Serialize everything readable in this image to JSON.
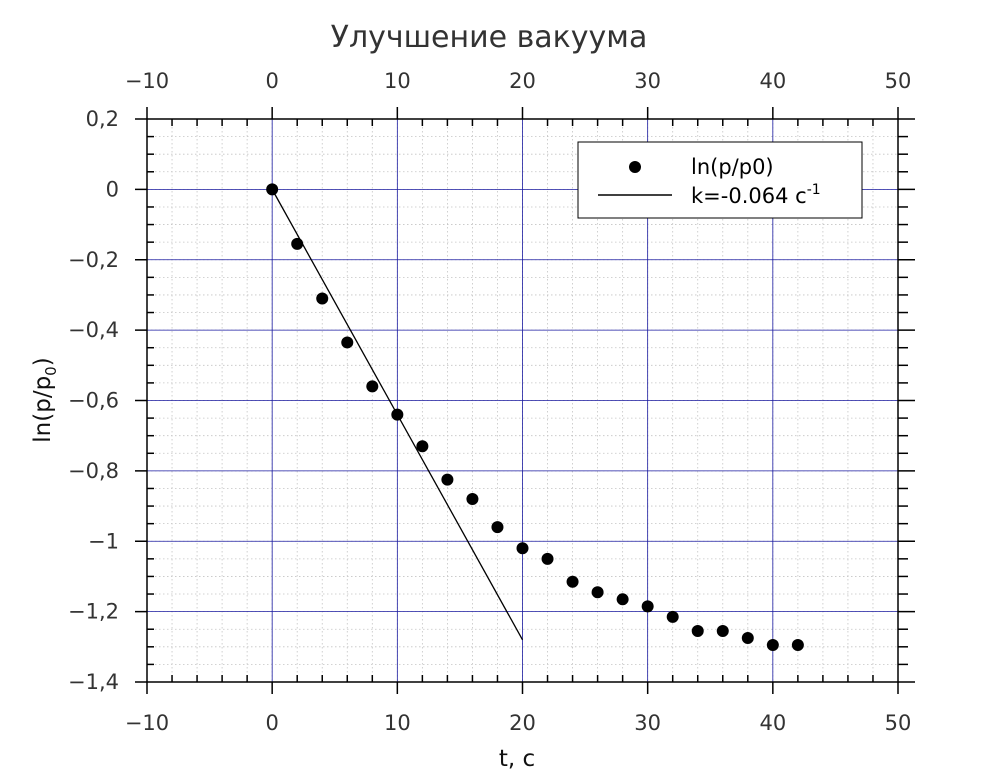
{
  "chart_data": {
    "type": "scatter",
    "title": "Улучшение вакуума",
    "xlabel": "t, с",
    "ylabel": "ln(p/p",
    "ylabel_sub": "0",
    "ylabel_close": ")",
    "xlim": [
      -10,
      50
    ],
    "ylim": [
      -1.4,
      0.2
    ],
    "xticks": [
      -10,
      0,
      10,
      20,
      30,
      40,
      50
    ],
    "xtick_labels": [
      "−10",
      "0",
      "10",
      "20",
      "30",
      "40",
      "50"
    ],
    "yticks": [
      0.2,
      0,
      -0.2,
      -0.4,
      -0.6,
      -0.8,
      -1,
      -1.2,
      -1.4
    ],
    "ytick_labels": [
      "0,2",
      "0",
      "−0,2",
      "−0,4",
      "−0,6",
      "−0,8",
      "−1",
      "−1,2",
      "−1,4"
    ],
    "grid": true,
    "legend_position": "top-right",
    "series": [
      {
        "name": "ln(p/p0)",
        "kind": "markers",
        "color": "#000000",
        "x": [
          0,
          2,
          4,
          6,
          8,
          10,
          12,
          14,
          16,
          18,
          20,
          22,
          24,
          26,
          28,
          30,
          32,
          34,
          36,
          38,
          40,
          42
        ],
        "y": [
          0,
          -0.155,
          -0.31,
          -0.435,
          -0.56,
          -0.64,
          -0.73,
          -0.825,
          -0.88,
          -0.96,
          -1.02,
          -1.05,
          -1.115,
          -1.145,
          -1.165,
          -1.185,
          -1.215,
          -1.255,
          -1.255,
          -1.275,
          -1.295,
          -1.295
        ]
      },
      {
        "name": "k=-0.064 с",
        "name_sup": "-1",
        "kind": "line",
        "color": "#000000",
        "x": [
          0,
          20
        ],
        "y": [
          0,
          -1.28
        ]
      }
    ]
  }
}
